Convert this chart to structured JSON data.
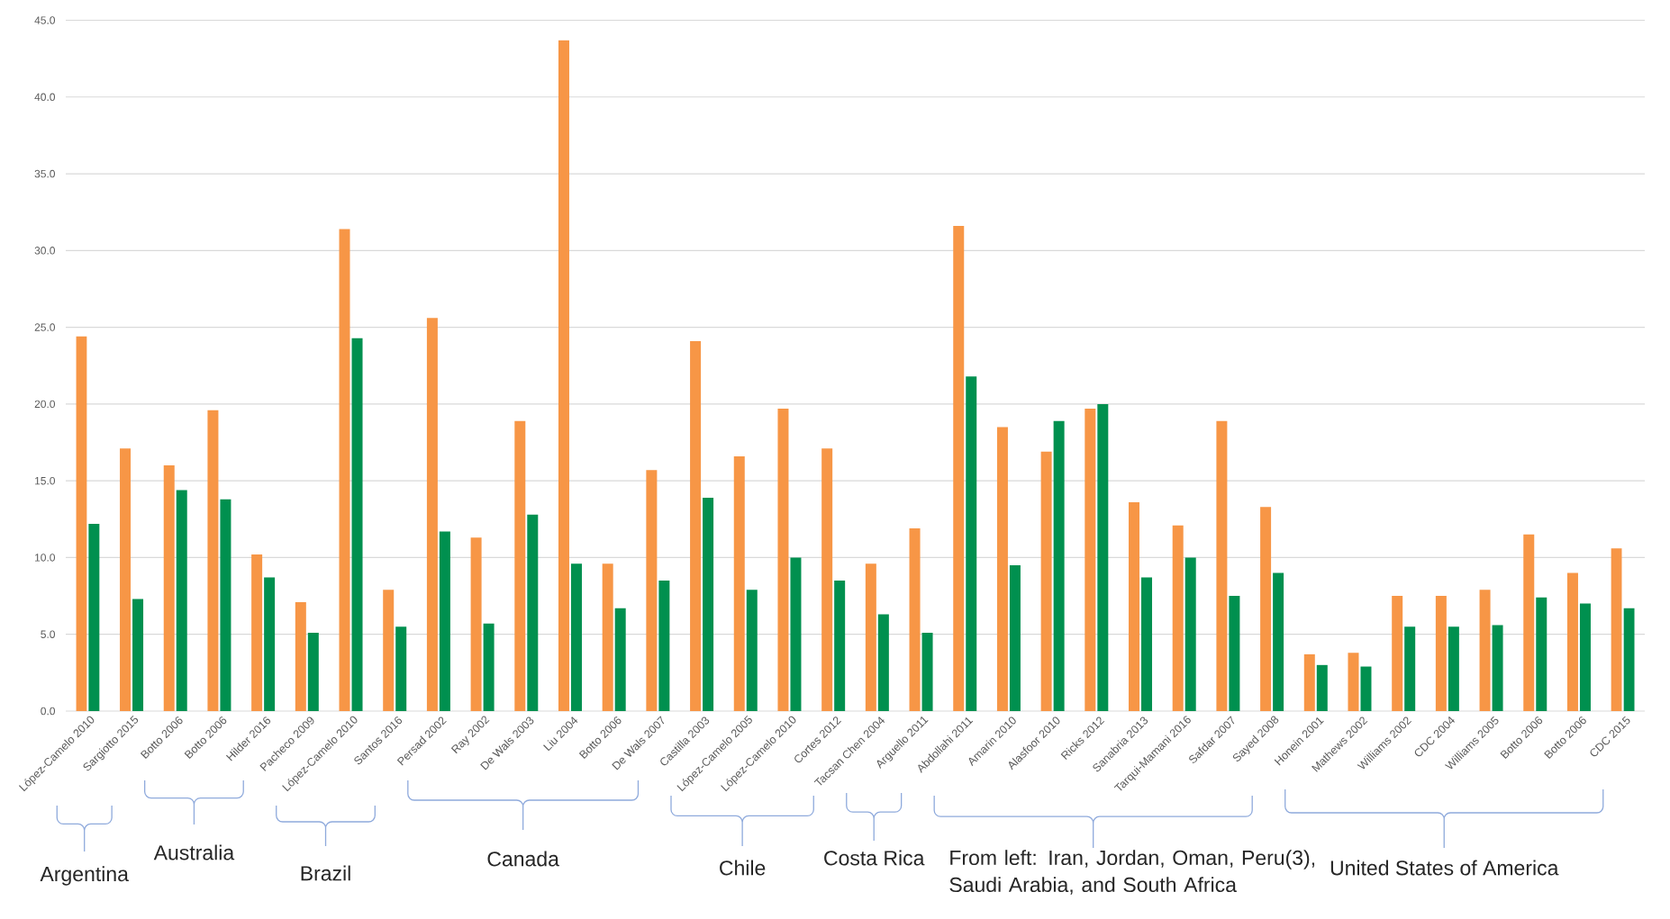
{
  "chart_data": {
    "type": "bar",
    "categories": [
      "López-Camelo 2010",
      "Sargiotto 2015",
      "Botto 2006",
      "Botto 2006",
      "Hilder 2016",
      "Pacheco 2009",
      "López-Camelo 2010",
      "Santos 2016",
      "Persad 2002",
      "Ray 2002",
      "De Wals 2003",
      "Liu 2004",
      "Botto 2006",
      "De Wals 2007",
      "Castilla 2003",
      "López-Camelo 2005",
      "López-Camelo 2010",
      "Cortes 2012",
      "Tacsan Chen 2004",
      "Arguello 2011",
      "Abdollahi 2011",
      "Amarin 2010",
      "Alasfoor 2010",
      "Ricks 2012",
      "Sanabria 2013",
      "Tarqui-Mamani 2016",
      "Safdar 2007",
      "Sayed 2008",
      "Honein 2001",
      "Mathews 2002",
      "Williams 2002",
      "CDC 2004",
      "Williams 2005",
      "Botto 2006",
      "Botto 2006",
      "CDC 2015"
    ],
    "series": [
      {
        "color": "#f79646",
        "values": [
          24.4,
          17.1,
          16.0,
          19.6,
          10.2,
          7.1,
          31.4,
          7.9,
          25.6,
          11.3,
          18.9,
          43.7,
          9.6,
          15.7,
          24.1,
          16.6,
          19.7,
          17.1,
          9.6,
          11.9,
          31.6,
          18.5,
          16.9,
          19.7,
          13.6,
          12.1,
          18.9,
          13.3,
          3.7,
          3.8,
          7.5,
          7.5,
          7.9,
          11.5,
          9.0,
          10.6
        ]
      },
      {
        "color": "#00904f",
        "values": [
          12.2,
          7.3,
          14.4,
          13.8,
          8.7,
          5.1,
          24.3,
          5.5,
          11.7,
          5.7,
          12.8,
          9.6,
          6.7,
          8.5,
          13.9,
          7.9,
          10.0,
          8.5,
          6.3,
          5.1,
          21.8,
          9.5,
          18.9,
          20.0,
          8.7,
          10.0,
          7.5,
          9.0,
          3.0,
          2.9,
          5.5,
          5.5,
          5.6,
          7.4,
          7.0,
          6.7
        ]
      }
    ],
    "ylim": [
      0,
      45
    ],
    "yticks": [
      {
        "value": 0,
        "label": "0.0"
      },
      {
        "value": 5,
        "label": "5.0"
      },
      {
        "value": 10,
        "label": "10.0"
      },
      {
        "value": 15,
        "label": "15.0"
      },
      {
        "value": 20,
        "label": "20.0"
      },
      {
        "value": 25,
        "label": "25.0"
      },
      {
        "value": 30,
        "label": "30.0"
      },
      {
        "value": 35,
        "label": "35.0"
      },
      {
        "value": 40,
        "label": "40.0"
      },
      {
        "value": 45,
        "label": "45.0"
      }
    ],
    "grid": "y",
    "annotations": [
      "Argentina",
      "Australia",
      "Brazil",
      "Canada",
      "Chile",
      "Costa Rica",
      "From left: Iran, Jordan, Oman, Peru(3), Saudi Arabia, and South Africa",
      "United States of America"
    ]
  }
}
